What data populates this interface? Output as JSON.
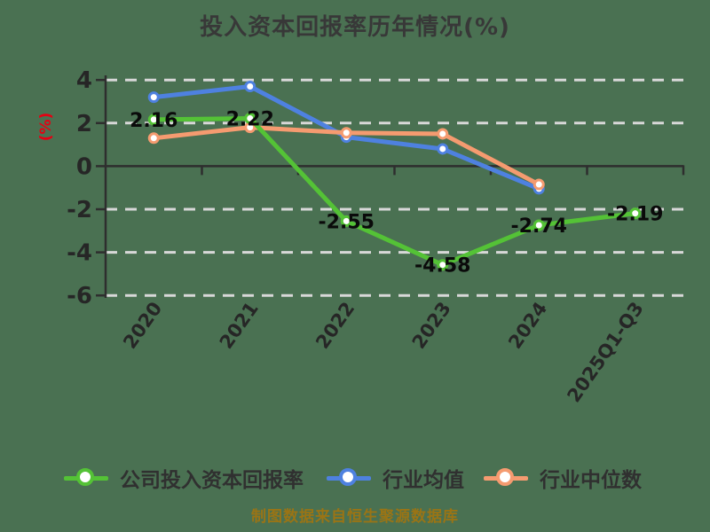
{
  "footer": "制图数据来自恒生聚源数据库",
  "colors": {
    "background": "#4A7152",
    "grid": "#D8D8D8",
    "axis": "#2E2E2E",
    "title_text": "#383838",
    "tick_text": "#262626",
    "data_label_text": "#0A0A0A",
    "ylabel_text": "#E60012",
    "legend_text": "#303030",
    "footer_text": "#9A7415",
    "marker_fill": "#FFFFFF"
  },
  "chart_data": {
    "type": "line",
    "title": "投入资本回报率历年情况(%)",
    "xlabel": "",
    "ylabel": "(%)",
    "categories": [
      "2020",
      "2021",
      "2022",
      "2023",
      "2024",
      "2025Q1-Q3"
    ],
    "yticks": [
      4,
      2,
      0,
      -2,
      -4,
      -6
    ],
    "ylim": [
      -6,
      4
    ],
    "grid": "horizontal-dashed",
    "legend_position": "bottom",
    "series": [
      {
        "name": "公司投入资本回报率",
        "color": "#54C236",
        "z": 3,
        "values": [
          2.16,
          2.22,
          -2.55,
          -4.58,
          -2.74,
          -2.19
        ],
        "labels": [
          "2.16",
          "2.22",
          "-2.55",
          "-4.58",
          "-2.74",
          "-2.19"
        ]
      },
      {
        "name": "行业均值",
        "color": "#4E81E0",
        "z": 1,
        "values": [
          3.2,
          3.7,
          1.35,
          0.8,
          -1.05
        ],
        "labels": null
      },
      {
        "name": "行业中位数",
        "color": "#F59B70",
        "z": 2,
        "values": [
          1.3,
          1.8,
          1.55,
          1.5,
          -0.85
        ],
        "labels": null
      }
    ]
  }
}
